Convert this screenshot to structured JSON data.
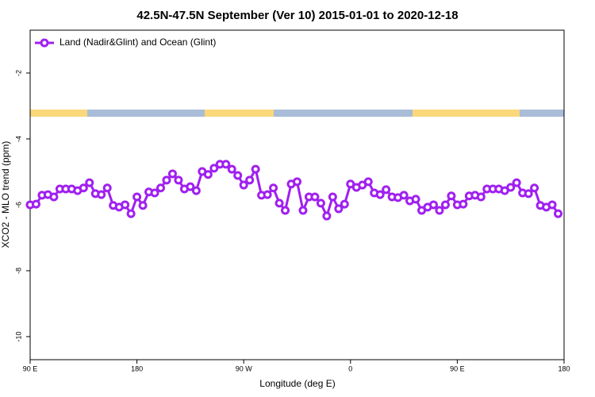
{
  "chart_data": {
    "type": "line",
    "title": "42.5N-47.5N September (Ver 10)   2015-01-01 to 2020-12-18",
    "x_label": "Longitude (deg E)",
    "y_label": "XCO2 - MLO trend (ppm)",
    "legend": "top-left",
    "name": "Land (Nadir&Glint) and Ocean (Glint)",
    "color": "#a020f0",
    "xlim": [
      90,
      540
    ],
    "xticks": [
      {
        "value": 90,
        "label": "90 E"
      },
      180,
      {
        "value": 270,
        "label": "90 W"
      },
      {
        "value": 360,
        "label": "0"
      },
      {
        "value": 450,
        "label": "90 E"
      },
      {
        "value": 540,
        "label": "180"
      }
    ],
    "ylim": [
      -10.7,
      -0.7
    ],
    "yticks": [
      -2,
      -4,
      -6,
      -8,
      -10
    ],
    "grid": false,
    "x": [
      90,
      95,
      100,
      105,
      110,
      115,
      120,
      125,
      130,
      135,
      140,
      145,
      150,
      155,
      160,
      165,
      170,
      175,
      180,
      185,
      190,
      195,
      200,
      205,
      210,
      215,
      220,
      225,
      230,
      235,
      240,
      245,
      250,
      255,
      260,
      265,
      270,
      275,
      280,
      285,
      290,
      295,
      300,
      305,
      310,
      315,
      320,
      325,
      330,
      335,
      340,
      345,
      350,
      355,
      360,
      365,
      370,
      375,
      380,
      385,
      390,
      395,
      400,
      405,
      410,
      415,
      420,
      425,
      430,
      435,
      440,
      445,
      450,
      455,
      460,
      465,
      470,
      475,
      480,
      485,
      490,
      495,
      500,
      505,
      510,
      515,
      520,
      525,
      530,
      535
    ],
    "values": [
      -6.0,
      -5.98,
      -5.71,
      -5.69,
      -5.76,
      -5.52,
      -5.52,
      -5.52,
      -5.57,
      -5.49,
      -5.33,
      -5.66,
      -5.69,
      -5.49,
      -6.02,
      -6.07,
      -6.0,
      -6.27,
      -5.76,
      -6.02,
      -5.61,
      -5.64,
      -5.49,
      -5.25,
      -5.06,
      -5.25,
      -5.52,
      -5.45,
      -5.57,
      -4.99,
      -5.08,
      -4.89,
      -4.77,
      -4.77,
      -4.92,
      -5.11,
      -5.4,
      -5.25,
      -4.92,
      -5.71,
      -5.69,
      -5.49,
      -5.95,
      -6.17,
      -5.37,
      -5.3,
      -6.17,
      -5.76,
      -5.76,
      -5.95,
      -6.34,
      -5.76,
      -6.12,
      -5.98,
      -5.37,
      -5.47,
      -5.4,
      -5.3,
      -5.64,
      -5.69,
      -5.54,
      -5.76,
      -5.78,
      -5.71,
      -5.88,
      -5.83,
      -6.17,
      -6.07,
      -6.0,
      -6.17,
      -6.0,
      -5.73,
      -6.0,
      -5.98,
      -5.73,
      -5.71,
      -5.76,
      -5.52,
      -5.52,
      -5.52,
      -5.57,
      -5.47,
      -5.33,
      -5.64,
      -5.66,
      -5.49,
      -6.02,
      -6.07,
      -6.0,
      -6.27
    ]
  }
}
